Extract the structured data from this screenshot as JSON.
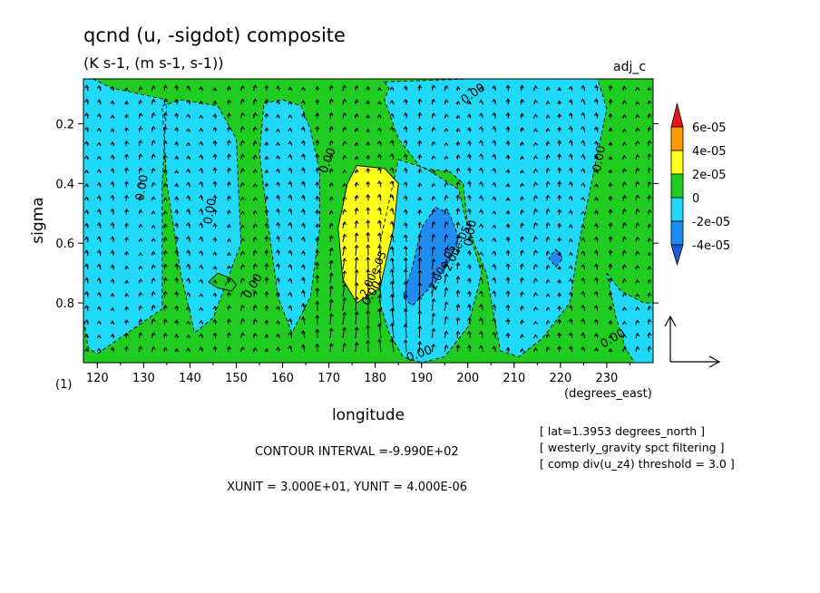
{
  "header": {
    "title": "qcnd (u, -sigdot) composite",
    "subtitle": "(K s-1, (m s-1, s-1))",
    "run_label": "adj_c"
  },
  "chart_data": {
    "type": "heatmap",
    "xlabel": "longitude",
    "xunit": "(degrees_east)",
    "ylabel": "sigma",
    "xlim": [
      117,
      240
    ],
    "ylim": [
      1.0,
      0.05
    ],
    "x_ticks": [
      120,
      130,
      140,
      150,
      160,
      170,
      180,
      190,
      200,
      210,
      220,
      230
    ],
    "x_tick_labels": [
      "120",
      "130",
      "140",
      "150",
      "160",
      "170",
      "180",
      "190",
      "200",
      "210",
      "220",
      "230"
    ],
    "y_ticks": [
      0.2,
      0.4,
      0.6,
      0.8
    ],
    "y_tick_labels": [
      "0.2",
      "0.4",
      "0.6",
      "0.8"
    ],
    "corner_label": "(1)",
    "colorbar": {
      "levels": [
        "6e-05",
        "4e-05",
        "2e-05",
        "0",
        "-2e-05",
        "-4e-05"
      ],
      "colors": [
        "#e8161b",
        "#ff9a00",
        "#ffff1a",
        "#20cc20",
        "#20d8f8",
        "#1e8cf0",
        "#1e5ad8"
      ]
    },
    "regions": [
      {
        "level": -2e-05,
        "color": "#20d8f8",
        "x": [
          119,
          123,
          135,
          134,
          134,
          120,
          118,
          117,
          117
        ],
        "y": [
          0.05,
          0.08,
          0.12,
          0.4,
          0.82,
          0.97,
          0.95,
          0.85,
          0.05
        ]
      },
      {
        "level": -2e-05,
        "color": "#20d8f8",
        "x": [
          134,
          138,
          146,
          150,
          151,
          145,
          141,
          138,
          135
        ],
        "y": [
          0.14,
          0.12,
          0.14,
          0.25,
          0.6,
          0.85,
          0.9,
          0.7,
          0.4
        ]
      },
      {
        "level": -2e-05,
        "color": "#20d8f8",
        "x": [
          156,
          160,
          164,
          166,
          168,
          168,
          166,
          162,
          159,
          157,
          155
        ],
        "y": [
          0.13,
          0.12,
          0.14,
          0.22,
          0.36,
          0.55,
          0.78,
          0.9,
          0.78,
          0.55,
          0.3
        ]
      },
      {
        "level": -2e-05,
        "color": "#20d8f8",
        "x": [
          182,
          200,
          228,
          230,
          228,
          224,
          222,
          216,
          211,
          207,
          204,
          200,
          199,
          196,
          190,
          185,
          182,
          183
        ],
        "y": [
          0.06,
          0.05,
          0.05,
          0.15,
          0.3,
          0.6,
          0.8,
          0.92,
          0.98,
          0.96,
          0.7,
          0.55,
          0.4,
          0.36,
          0.35,
          0.25,
          0.12,
          0.08
        ]
      },
      {
        "level": -2e-05,
        "color": "#20d8f8",
        "x": [
          185,
          191,
          198,
          200,
          203,
          200,
          195,
          190,
          186,
          183,
          181,
          181
        ],
        "y": [
          0.32,
          0.35,
          0.42,
          0.55,
          0.7,
          0.88,
          0.98,
          1.0,
          0.98,
          0.9,
          0.8,
          0.6
        ]
      },
      {
        "level": -2e-05,
        "color": "#20d8f8",
        "x": [
          230,
          233,
          238,
          240,
          240,
          236,
          234,
          232
        ],
        "y": [
          0.7,
          0.76,
          0.8,
          0.8,
          1.0,
          1.0,
          0.95,
          0.85
        ]
      },
      {
        "level": 2e-05,
        "color": "#ffff1a",
        "x": [
          176,
          182,
          185,
          184,
          181,
          176,
          173,
          172,
          174
        ],
        "y": [
          0.34,
          0.35,
          0.4,
          0.55,
          0.75,
          0.8,
          0.72,
          0.55,
          0.4
        ]
      },
      {
        "level": -4e-05,
        "color": "#1e8cf0",
        "x": [
          193,
          196,
          198,
          196,
          193,
          188,
          186,
          188,
          190
        ],
        "y": [
          0.48,
          0.5,
          0.58,
          0.66,
          0.73,
          0.81,
          0.78,
          0.68,
          0.55
        ]
      },
      {
        "level": -4e-05,
        "color": "#1e8cf0",
        "x": [
          219,
          220.5,
          219,
          217.5
        ],
        "y": [
          0.62,
          0.65,
          0.68,
          0.65
        ]
      },
      {
        "level": 0,
        "color": "#20cc20",
        "x": [
          146,
          149,
          150,
          149,
          146,
          144
        ],
        "y": [
          0.7,
          0.72,
          0.74,
          0.76,
          0.75,
          0.73
        ]
      }
    ],
    "contour_labels": [
      "0.00",
      "0.00",
      "0.00",
      "0.00",
      "0.00",
      "0.00",
      "0.00",
      "0.00",
      "0.00",
      "0.00",
      "-2.00e-05",
      "-2.00e-05",
      "2.00e-05"
    ],
    "vector_reference": {
      "x_unit": "3.000E+01",
      "y_unit": "4.000E-06"
    }
  },
  "footer": {
    "contour_interval": "CONTOUR INTERVAL =-9.990E+02",
    "units": "XUNIT = 3.000E+01, YUNIT = 4.000E-06",
    "notes": [
      "[ lat=1.3953 degrees_north ]",
      "[ westerly_gravity spct filtering ]",
      "[ comp div(u_z4) threshold = 3.0 ]"
    ]
  }
}
